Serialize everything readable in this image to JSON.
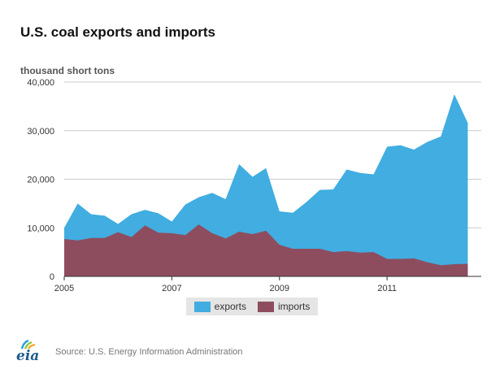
{
  "header": {
    "title": "U.S. coal exports and imports",
    "unit_label": "thousand short tons"
  },
  "footer": {
    "logo_text": "eia",
    "source": "Source: U.S. Energy Information Administration"
  },
  "colors": {
    "exports": "#41ade0",
    "imports": "#8e4d5f",
    "axis": "#333333",
    "grid": "#cccccc"
  },
  "chart_data": {
    "type": "area",
    "title": "U.S. coal exports and imports",
    "ylabel": "thousand short tons",
    "xlabel": "",
    "ylim": [
      0,
      40000
    ],
    "yticks": [
      0,
      10000,
      20000,
      30000,
      40000
    ],
    "ytick_labels": [
      "0",
      "10,000",
      "20,000",
      "30,000",
      "40,000"
    ],
    "xlim": [
      2005,
      2012.75
    ],
    "xticks": [
      2005,
      2007,
      2009,
      2011
    ],
    "xtick_labels": [
      "2005",
      "2007",
      "2009",
      "2011"
    ],
    "grid": "horizontal",
    "legend_position": "bottom",
    "x": [
      2005.0,
      2005.25,
      2005.5,
      2005.75,
      2006.0,
      2006.25,
      2006.5,
      2006.75,
      2007.0,
      2007.25,
      2007.5,
      2007.75,
      2008.0,
      2008.25,
      2008.5,
      2008.75,
      2009.0,
      2009.25,
      2009.5,
      2009.75,
      2010.0,
      2010.25,
      2010.5,
      2010.75,
      2011.0,
      2011.25,
      2011.5,
      2011.75,
      2012.0,
      2012.25,
      2012.5
    ],
    "series": [
      {
        "name": "exports",
        "values": [
          10000,
          15000,
          12800,
          12500,
          10800,
          12800,
          13700,
          13000,
          11300,
          14800,
          16300,
          17200,
          15900,
          23100,
          20500,
          22300,
          13400,
          13100,
          15300,
          17800,
          17900,
          22000,
          21300,
          21000,
          26700,
          27000,
          26100,
          27700,
          28800,
          37500,
          31600
        ]
      },
      {
        "name": "imports",
        "values": [
          7700,
          7400,
          7900,
          7900,
          9100,
          8100,
          10500,
          9000,
          8900,
          8500,
          10700,
          8900,
          7800,
          9200,
          8700,
          9400,
          6500,
          5700,
          5700,
          5700,
          5000,
          5200,
          4900,
          5000,
          3600,
          3600,
          3700,
          2900,
          2300,
          2500,
          2600
        ]
      }
    ]
  }
}
